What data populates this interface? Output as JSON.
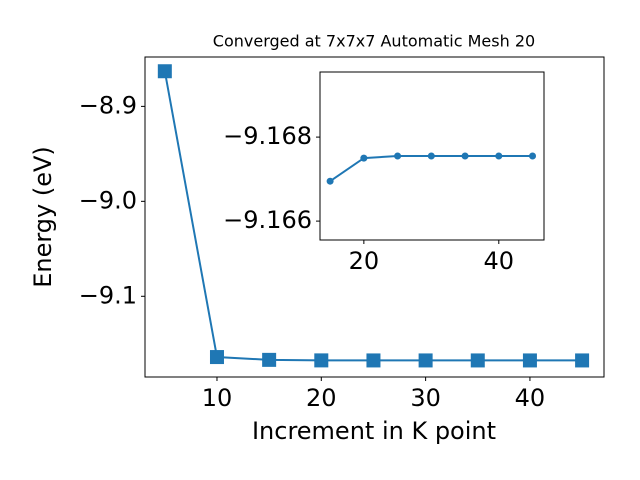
{
  "chart_data": [
    {
      "type": "line",
      "title": "Converged at 7x7x7 Automatic Mesh 20",
      "xlabel": "Increment in K point",
      "ylabel": "Energy (eV)",
      "x": [
        5,
        10,
        15,
        20,
        25,
        30,
        35,
        40,
        45
      ],
      "values": [
        -8.863,
        -9.164,
        -9.16695,
        -9.1675,
        -9.16755,
        -9.16755,
        -9.16755,
        -9.16755,
        -9.16755
      ],
      "color": "#1f77b4",
      "marker": "square",
      "xlim": [
        3.1,
        47.1
      ],
      "xticks": [
        10,
        20,
        30,
        40
      ],
      "ylim": [
        -9.185,
        -8.848
      ],
      "yticks": [
        {
          "value": -8.9,
          "label": "−8.9"
        },
        {
          "value": -9.0,
          "label": "−9.0"
        },
        {
          "value": -9.1,
          "label": "−9.1"
        }
      ]
    },
    {
      "type": "line",
      "x": [
        15,
        20,
        25,
        30,
        35,
        40,
        45
      ],
      "values": [
        -9.16695,
        -9.1675,
        -9.16755,
        -9.16755,
        -9.16755,
        -9.16755,
        -9.16755
      ],
      "color": "#1f77b4",
      "marker": "circle",
      "xlim": [
        13.5,
        46.7
      ],
      "xticks": [
        20,
        40
      ],
      "ylim": [
        -9.16555,
        -9.16955
      ],
      "yticks": [
        {
          "value": -9.168,
          "label": "−9.168"
        },
        {
          "value": -9.166,
          "label": "−9.166"
        }
      ]
    }
  ]
}
